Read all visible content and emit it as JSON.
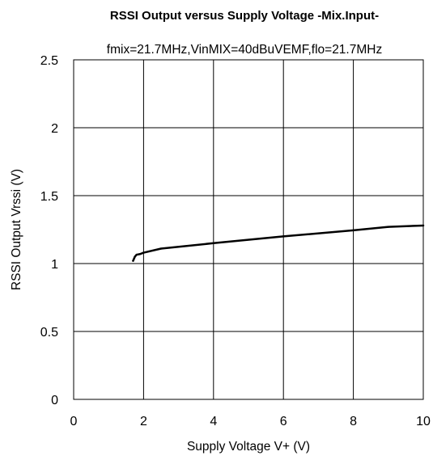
{
  "chart_data": {
    "type": "line",
    "title": "RSSI Output versus Supply Voltage -Mix.Input-",
    "subtitle": "fmix=21.7MHz,VinMIX=40dBuVEMF,flo=21.7MHz",
    "xlabel": "Supply Voltage V+ (V)",
    "ylabel": "RSSI Output Vrssi (V)",
    "xlim": [
      0,
      10
    ],
    "ylim": [
      0,
      2.5
    ],
    "x_ticks": [
      0,
      2,
      4,
      6,
      8,
      10
    ],
    "x_tick_labels": [
      "0",
      "2",
      "4",
      "6",
      "8",
      "10"
    ],
    "y_ticks": [
      0,
      0.5,
      1,
      1.5,
      2,
      2.5
    ],
    "y_tick_labels": [
      "0",
      "0.5",
      "1",
      "1.5",
      "2",
      "2.5"
    ],
    "grid": true,
    "series": [
      {
        "color": "#000000",
        "x": [
          1.7,
          1.75,
          1.8,
          1.9,
          2.0,
          2.5,
          4.0,
          6.0,
          8.0,
          9.0,
          10.0
        ],
        "y": [
          1.02,
          1.05,
          1.065,
          1.07,
          1.08,
          1.11,
          1.15,
          1.2,
          1.245,
          1.27,
          1.28
        ]
      }
    ]
  }
}
